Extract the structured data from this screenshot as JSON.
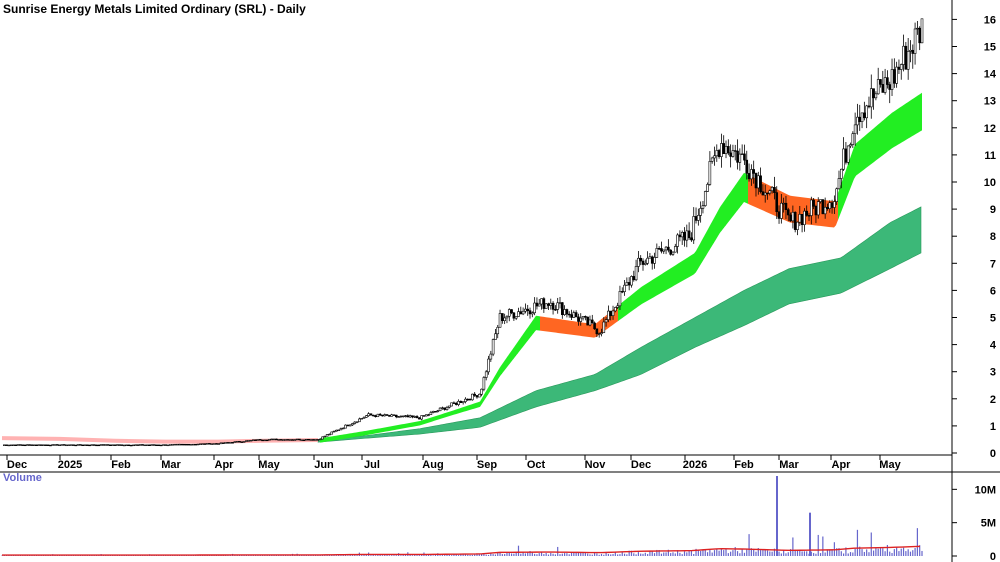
{
  "title": "Sunrise Energy Metals Limited Ordinary (SRL) - Daily",
  "volume_label": "Volume",
  "colors": {
    "ribbon_up": "#22ee22",
    "ribbon_down": "#ff6622",
    "long_band": "#3cb878",
    "long_band_edge": "#2a9a5c",
    "ma_early": "#ffaaaa",
    "volume_bars": "#6666cc",
    "volume_avg": "#dd2222",
    "candle": "#000000"
  },
  "chart_data": [
    {
      "type": "candlestick",
      "title": "Sunrise Energy Metals Limited Ordinary (SRL) - Daily",
      "y_axis_side": "right",
      "ylim": [
        0,
        16
      ],
      "y_ticks": [
        "0",
        "1",
        "2",
        "3",
        "4",
        "5",
        "6",
        "7",
        "8",
        "9",
        "10",
        "11",
        "12",
        "13",
        "14",
        "15",
        "16"
      ],
      "x_tick_labels": [
        "Dec",
        "2025",
        "Feb",
        "Mar",
        "Apr",
        "May",
        "Jun",
        "Jul",
        "Aug",
        "Sep",
        "Oct",
        "Nov",
        "Dec",
        "2026",
        "Feb",
        "Mar",
        "Apr",
        "May"
      ],
      "approx_close_path": [
        [
          "Dec 2024",
          0.3
        ],
        [
          "Jan 2025",
          0.3
        ],
        [
          "Feb",
          0.3
        ],
        [
          "Mar",
          0.3
        ],
        [
          "Apr",
          0.35
        ],
        [
          "May",
          0.5
        ],
        [
          "Jun",
          0.5
        ],
        [
          "Jul",
          1.4
        ],
        [
          "Aug",
          1.3
        ],
        [
          "Sep",
          2.2
        ],
        [
          "mid Sep",
          5.0
        ],
        [
          "Oct",
          5.6
        ],
        [
          "Nov",
          4.5
        ],
        [
          "Dec",
          7.0
        ],
        [
          "Jan 2026",
          8.0
        ],
        [
          "late Jan",
          11.5
        ],
        [
          "Feb",
          10.8
        ],
        [
          "Mar",
          8.5
        ],
        [
          "Apr",
          9.5
        ],
        [
          "late Apr",
          12.5
        ],
        [
          "May",
          13.8
        ],
        [
          "mid May",
          15.7
        ]
      ],
      "short_ribbon_approx": [
        [
          "Jun",
          0.45
        ],
        [
          "Jul",
          0.75
        ],
        [
          "Aug",
          1.1
        ],
        [
          "Sep",
          1.8
        ],
        [
          "mid Sep",
          3.0
        ],
        [
          "Oct",
          4.8
        ],
        [
          "Nov",
          4.5
        ],
        [
          "Dec",
          5.8
        ],
        [
          "Jan 2026",
          7.0
        ],
        [
          "late Jan",
          8.6
        ],
        [
          "Feb",
          9.8
        ],
        [
          "Mar",
          9.0
        ],
        [
          "Apr",
          8.8
        ],
        [
          "late Apr",
          10.8
        ],
        [
          "May",
          11.9
        ],
        [
          "mid May",
          12.6
        ]
      ],
      "long_band_approx": [
        [
          "Jun",
          0.4,
          0.45
        ],
        [
          "Jul",
          0.55,
          0.65
        ],
        [
          "Aug",
          0.7,
          0.9
        ],
        [
          "Sep",
          0.95,
          1.3
        ],
        [
          "Oct",
          1.7,
          2.3
        ],
        [
          "Nov",
          2.3,
          2.9
        ],
        [
          "Dec",
          2.9,
          3.9
        ],
        [
          "Jan 2026",
          3.9,
          5.0
        ],
        [
          "Feb",
          4.7,
          6.0
        ],
        [
          "Mar",
          5.5,
          6.8
        ],
        [
          "Apr",
          5.9,
          7.2
        ],
        [
          "May",
          6.8,
          8.5
        ],
        [
          "mid May",
          7.4,
          9.1
        ]
      ]
    },
    {
      "type": "bar",
      "title": "Volume",
      "y_axis_side": "right",
      "y_ticks": [
        "0",
        "5M",
        "10M"
      ],
      "ylim": [
        0,
        12000000
      ],
      "notable_spikes": [
        [
          "late Feb 2026",
          12000000
        ],
        [
          "mid Mar 2026",
          6500000
        ]
      ]
    }
  ]
}
